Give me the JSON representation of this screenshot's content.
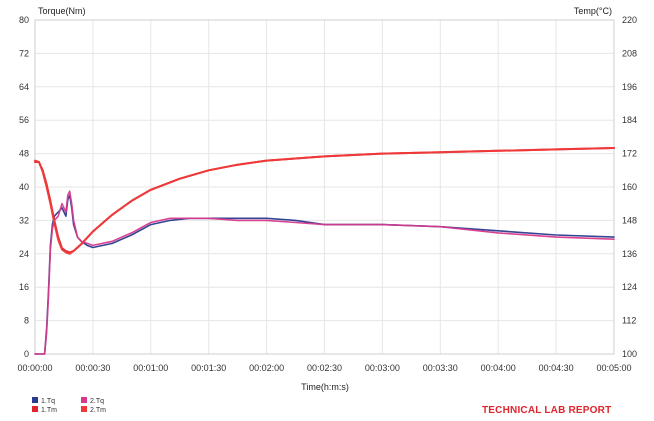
{
  "chart_data": {
    "type": "line",
    "ylabel_left": "Torque(Nm)",
    "ylabel_right": "Temp(°C)",
    "xlabel": "Time(h:m:s)",
    "x_ticks": [
      "00:00:00",
      "00:00:30",
      "00:01:00",
      "00:01:30",
      "00:02:00",
      "00:02:30",
      "00:03:00",
      "00:03:30",
      "00:04:00",
      "00:04:30",
      "00:05:00"
    ],
    "xlim_seconds": [
      0,
      300
    ],
    "ylim_left": [
      0,
      80
    ],
    "ylim_right": [
      100,
      220
    ],
    "y_ticks_left": [
      0,
      8,
      16,
      24,
      32,
      40,
      48,
      56,
      64,
      72,
      80
    ],
    "y_ticks_right": [
      100,
      112,
      124,
      136,
      148,
      160,
      172,
      184,
      196,
      208,
      220
    ],
    "grid": true,
    "series": [
      {
        "name": "1.Tq",
        "axis": "left",
        "color": "#2b3a8f",
        "x": [
          "00:00:00",
          "00:00:05",
          "00:00:06",
          "00:00:07",
          "00:00:08",
          "00:00:09",
          "00:00:10",
          "00:00:12",
          "00:00:14",
          "00:00:16",
          "00:00:17",
          "00:00:18",
          "00:00:19",
          "00:00:20",
          "00:00:22",
          "00:00:24",
          "00:00:27",
          "00:00:30",
          "00:00:40",
          "00:00:50",
          "00:01:00",
          "00:01:10",
          "00:01:20",
          "00:01:30",
          "00:01:45",
          "00:02:00",
          "00:02:15",
          "00:02:30",
          "00:03:00",
          "00:03:30",
          "00:04:00",
          "00:04:30",
          "00:05:00"
        ],
        "values": [
          0,
          0,
          6,
          15,
          26,
          31,
          33,
          34,
          35,
          33,
          37,
          38,
          35,
          31,
          28,
          27,
          26,
          25.5,
          26.5,
          28.5,
          31,
          32,
          32.5,
          32.5,
          32.5,
          32.5,
          32,
          31,
          31,
          30.5,
          29.5,
          28.5,
          28
        ]
      },
      {
        "name": "1.Tm",
        "axis": "right",
        "color": "#e0242b",
        "x": [
          "00:00:00",
          "00:00:02",
          "00:00:04",
          "00:00:06",
          "00:00:08",
          "00:00:10",
          "00:00:12",
          "00:00:14",
          "00:00:16",
          "00:00:18",
          "00:00:20",
          "00:00:24",
          "00:00:30",
          "00:00:40",
          "00:00:50",
          "00:01:00",
          "00:01:15",
          "00:01:30",
          "00:01:45",
          "00:02:00",
          "00:02:30",
          "00:03:00",
          "00:03:30",
          "00:04:00",
          "00:04:30",
          "00:05:00"
        ],
        "values": [
          169,
          169,
          166,
          161,
          155,
          148,
          142,
          138,
          137,
          136.5,
          137,
          139.5,
          144,
          150,
          155,
          159,
          163,
          166,
          168,
          169.5,
          171,
          172,
          172.5,
          173,
          173.5,
          174
        ]
      },
      {
        "name": "2.Tq",
        "axis": "left",
        "color": "#d63a8c",
        "x": [
          "00:00:00",
          "00:00:05",
          "00:00:06",
          "00:00:07",
          "00:00:08",
          "00:00:09",
          "00:00:10",
          "00:00:12",
          "00:00:14",
          "00:00:16",
          "00:00:17",
          "00:00:18",
          "00:00:19",
          "00:00:20",
          "00:00:22",
          "00:00:24",
          "00:00:27",
          "00:00:30",
          "00:00:40",
          "00:00:50",
          "00:01:00",
          "00:01:10",
          "00:01:20",
          "00:01:30",
          "00:01:45",
          "00:02:00",
          "00:02:15",
          "00:02:30",
          "00:03:00",
          "00:03:30",
          "00:04:00",
          "00:04:30",
          "00:05:00"
        ],
        "values": [
          0,
          0,
          5,
          14,
          25,
          30,
          32,
          33,
          36,
          34,
          38,
          39,
          36,
          32,
          28,
          27,
          26.5,
          26,
          27,
          29,
          31.5,
          32.5,
          32.5,
          32.5,
          32,
          32,
          31.5,
          31,
          31,
          30.5,
          29,
          28,
          27.5
        ]
      },
      {
        "name": "2.Tm",
        "axis": "right",
        "color": "#ef3a3a",
        "x": [
          "00:00:00",
          "00:00:02",
          "00:00:04",
          "00:00:06",
          "00:00:08",
          "00:00:10",
          "00:00:12",
          "00:00:14",
          "00:00:16",
          "00:00:18",
          "00:00:20",
          "00:00:24",
          "00:00:30",
          "00:00:40",
          "00:00:50",
          "00:01:00",
          "00:01:15",
          "00:01:30",
          "00:01:45",
          "00:02:00",
          "00:02:30",
          "00:03:00",
          "00:03:30",
          "00:04:00",
          "00:04:30",
          "00:05:00"
        ],
        "values": [
          169.5,
          169,
          165.5,
          160,
          154,
          147,
          141,
          137.5,
          136.5,
          136,
          137,
          139.5,
          144,
          150,
          155,
          159,
          163,
          166,
          168,
          169.5,
          171,
          172,
          172.5,
          173,
          173.5,
          174
        ]
      }
    ]
  },
  "legend": [
    {
      "label": "1.Tq",
      "color": "#2b3a8f"
    },
    {
      "label": "1.Tm",
      "color": "#e0242b"
    },
    {
      "label": "2.Tq",
      "color": "#d63a8c"
    },
    {
      "label": "2.Tm",
      "color": "#ef3a3a"
    }
  ],
  "report_label": "TECHNICAL LAB REPORT"
}
